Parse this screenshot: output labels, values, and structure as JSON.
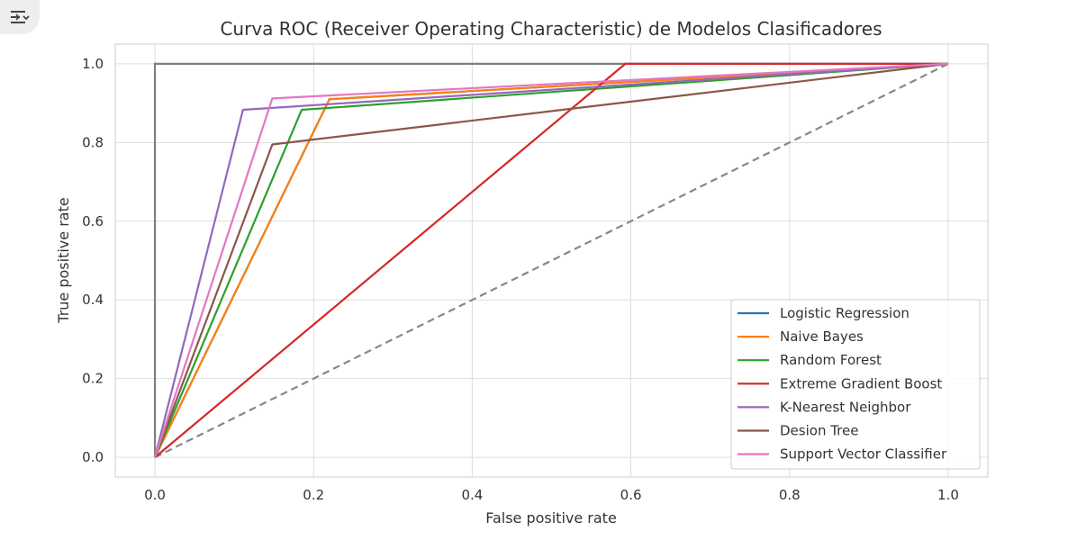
{
  "output_toggle": {
    "icon": "collapse-output-icon"
  },
  "chart_data": {
    "type": "line",
    "title": "Curva ROC (Receiver Operating Characteristic) de Modelos Clasificadores",
    "xlabel": "False positive rate",
    "ylabel": "True positive rate",
    "xlim": [
      -0.05,
      1.05
    ],
    "ylim": [
      -0.05,
      1.05
    ],
    "xticks": [
      0.0,
      0.2,
      0.4,
      0.6,
      0.8,
      1.0
    ],
    "yticks": [
      0.0,
      0.2,
      0.4,
      0.6,
      0.8,
      1.0
    ],
    "xtick_labels": [
      "0.0",
      "0.2",
      "0.4",
      "0.6",
      "0.8",
      "1.0"
    ],
    "ytick_labels": [
      "0.0",
      "0.2",
      "0.4",
      "0.6",
      "0.8",
      "1.0"
    ],
    "grid": true,
    "legend_position": "lower-right",
    "series": [
      {
        "name": "Logistic Regression",
        "color": "#1f77b4",
        "x": [
          0,
          0.22,
          1.0
        ],
        "y": [
          0,
          0.91,
          1.0
        ]
      },
      {
        "name": "Naive Bayes",
        "color": "#ff7f0e",
        "x": [
          0,
          0.22,
          1.0
        ],
        "y": [
          0,
          0.91,
          1.0
        ]
      },
      {
        "name": "Random Forest",
        "color": "#2ca02c",
        "x": [
          0,
          0.185,
          1.0
        ],
        "y": [
          0,
          0.883,
          1.0
        ]
      },
      {
        "name": "Extreme Gradient Boost",
        "color": "#d62728",
        "x": [
          0,
          0.593,
          1.0
        ],
        "y": [
          0,
          1.0,
          1.0
        ]
      },
      {
        "name": "K-Nearest Neighbor",
        "color": "#9467bd",
        "x": [
          0,
          0.111,
          1.0
        ],
        "y": [
          0,
          0.883,
          1.0
        ]
      },
      {
        "name": "Desion Tree",
        "color": "#8c564b",
        "x": [
          0,
          0.148,
          1.0
        ],
        "y": [
          0,
          0.795,
          1.0
        ]
      },
      {
        "name": "Support Vector Classifier",
        "color": "#e377c2",
        "x": [
          0,
          0.148,
          1.0
        ],
        "y": [
          0,
          0.912,
          1.0
        ]
      }
    ],
    "reference_lines": [
      {
        "role": "perfect-classifier",
        "color": "#7f7f7f",
        "dashed": false,
        "x": [
          0,
          0,
          1.0
        ],
        "y": [
          0,
          1.0,
          1.0
        ]
      },
      {
        "role": "random-classifier",
        "color": "#888888",
        "dashed": true,
        "x": [
          0,
          1.0
        ],
        "y": [
          0,
          1.0
        ]
      }
    ]
  }
}
